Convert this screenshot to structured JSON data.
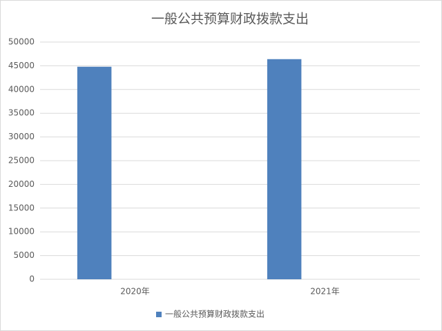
{
  "chart_data": {
    "type": "bar",
    "title": "一般公共预算财政拨款支出",
    "categories": [
      "2020年",
      "2021年"
    ],
    "series": [
      {
        "name": "一般公共预算财政拨款支出",
        "color": "#4f81bd",
        "values": [
          44800,
          46400
        ]
      }
    ],
    "ylim": [
      0,
      50000
    ],
    "yticks": [
      0,
      5000,
      10000,
      15000,
      20000,
      25000,
      30000,
      35000,
      40000,
      45000,
      50000
    ],
    "grid": true,
    "legend": "bottom"
  }
}
